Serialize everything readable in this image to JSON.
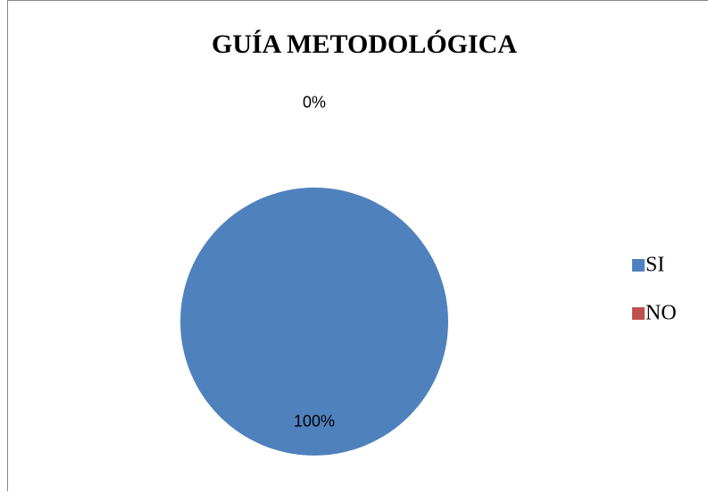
{
  "chart_data": {
    "type": "pie",
    "title": "GUÍA METODOLÓGICA",
    "categories": [
      "SI",
      "NO"
    ],
    "values": [
      100,
      0
    ],
    "value_labels": [
      "100%",
      "0%"
    ],
    "colors": [
      "#4f81bd",
      "#c0504d"
    ],
    "legend": "right"
  }
}
